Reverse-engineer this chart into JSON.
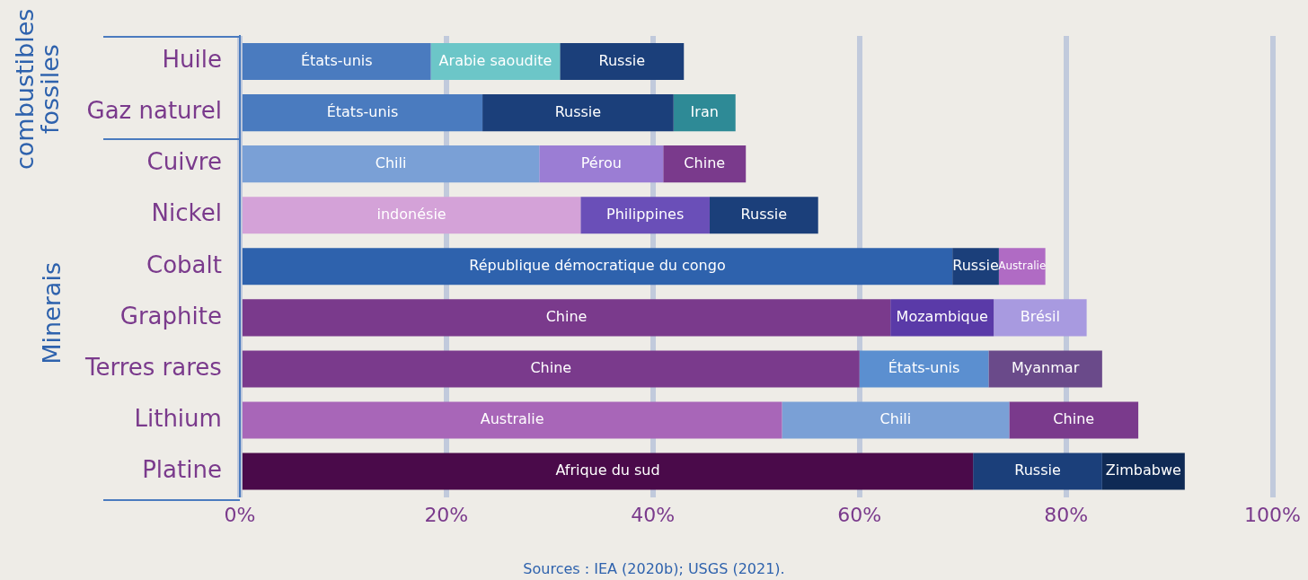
{
  "chart_data": {
    "type": "bar",
    "orientation": "horizontal",
    "stacked": true,
    "categories": [
      "Huile",
      "Gaz naturel",
      "Cuivre",
      "Nickel",
      "Cobalt",
      "Graphite",
      "Terres rares",
      "Lithium",
      "Platine"
    ],
    "series": [
      {
        "values": [
          18.5,
          23.5,
          29,
          33,
          69,
          63,
          60,
          52.5,
          71
        ],
        "colors": [
          "#4a7bbf",
          "#4a7bbf",
          "#7aa0d6",
          "#d4a2d8",
          "#2e62ad",
          "#7a3a8c",
          "#7a3a8c",
          "#a866b8",
          "#4a0a4a"
        ],
        "value_labels": [
          "États-unis",
          "États-unis",
          "Chili",
          "indonésie",
          "République démocratique du congo",
          "Chine",
          "Chine",
          "Australie",
          "Afrique du sud"
        ]
      },
      {
        "values": [
          12.5,
          18.5,
          12,
          12.5,
          4.5,
          10,
          12.5,
          22,
          12.5
        ],
        "colors": [
          "#6cc6c8",
          "#1b3f7a",
          "#9b7dd4",
          "#6a4fb8",
          "#1b3f7a",
          "#5a3aa8",
          "#5b8fd0",
          "#7aa0d6",
          "#1b3f7a"
        ],
        "value_labels": [
          "Arabie saoudite",
          "Russie",
          "Pérou",
          "Philippines",
          "Russie",
          "Mozambique",
          "États-unis",
          "Chili",
          "Russie"
        ]
      },
      {
        "values": [
          12,
          6,
          8,
          10.5,
          4.5,
          9,
          11,
          12.5,
          8
        ],
        "colors": [
          "#1b3f7a",
          "#2e8a96",
          "#7a3a8c",
          "#1b3f7a",
          "#b06bc4",
          "#a89ae0",
          "#6a4a8a",
          "#7a3a8c",
          "#0f2a55"
        ],
        "value_labels": [
          "Russie",
          "Iran",
          "Chine",
          "Russie",
          "Australie",
          "Brésil",
          "Myanmar",
          "Chine",
          "Zimbabwe"
        ]
      }
    ],
    "xlim": [
      0,
      100
    ],
    "xticks": [
      {
        "value": 0,
        "label": "0%"
      },
      {
        "value": 20,
        "label": "20%"
      },
      {
        "value": 40,
        "label": "40%"
      },
      {
        "value": 60,
        "label": "60%"
      },
      {
        "value": 80,
        "label": "80%"
      },
      {
        "value": 100,
        "label": "100%"
      }
    ],
    "grid": "x",
    "legend": false,
    "annotations": [
      "combustibles fossiles",
      "Minerais",
      "Sources : IEA (2020b); USGS (2021)."
    ]
  }
}
